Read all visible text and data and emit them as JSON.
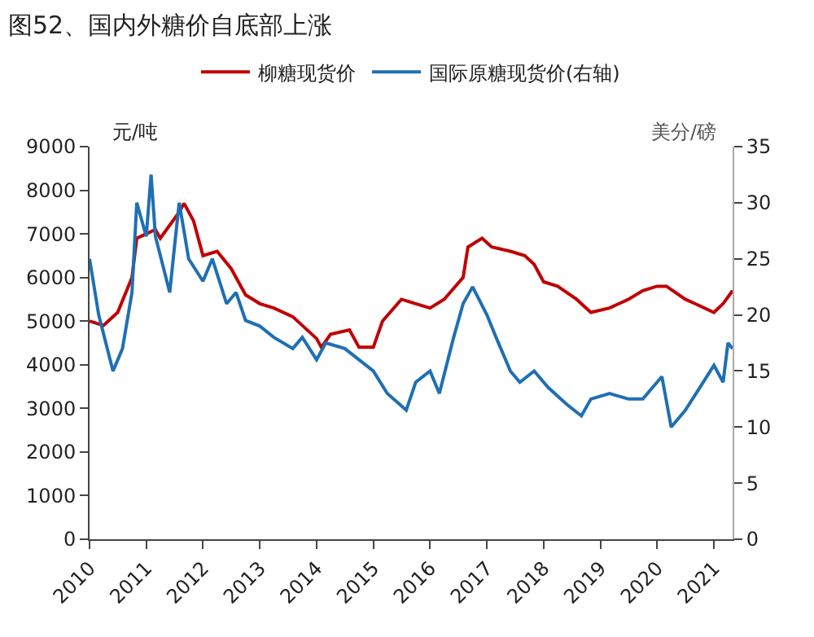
{
  "chart_data": {
    "type": "line",
    "title": "图52、国内外糖价自底部上涨",
    "ylabel": "元/吨",
    "y2label": "美分/磅",
    "legend": "top",
    "xlim": [
      "2010-01",
      "2021-05"
    ],
    "xticks": [
      "2010",
      "2011",
      "2012",
      "2013",
      "2014",
      "2015",
      "2016",
      "2017",
      "2018",
      "2019",
      "2020",
      "2021"
    ],
    "ylim": [
      0,
      9000
    ],
    "yticks": [
      0,
      1000,
      2000,
      3000,
      4000,
      5000,
      6000,
      7000,
      8000,
      9000
    ],
    "y2lim": [
      0,
      35
    ],
    "y2ticks": [
      0,
      5,
      10,
      15,
      20,
      25,
      30,
      35
    ],
    "series": [
      {
        "name": "柳糖现货价",
        "color": "#c00000",
        "x": [
          "2010-01",
          "2010-04",
          "2010-07",
          "2010-10",
          "2010-11",
          "2011-01",
          "2011-03",
          "2011-04",
          "2011-08",
          "2011-09",
          "2011-11",
          "2012-01",
          "2012-04",
          "2012-07",
          "2012-10",
          "2013-01",
          "2013-04",
          "2013-08",
          "2014-01",
          "2014-02",
          "2014-04",
          "2014-08",
          "2014-10",
          "2015-01",
          "2015-03",
          "2015-07",
          "2015-10",
          "2016-01",
          "2016-04",
          "2016-08",
          "2016-09",
          "2016-12",
          "2017-02",
          "2017-06",
          "2017-09",
          "2017-11",
          "2018-01",
          "2018-04",
          "2018-08",
          "2018-11",
          "2019-03",
          "2019-07",
          "2019-10",
          "2020-01",
          "2020-03",
          "2020-07",
          "2020-09",
          "2021-01",
          "2021-03",
          "2021-05"
        ],
        "values": [
          5000,
          4900,
          5200,
          6000,
          6900,
          7000,
          7100,
          6900,
          7500,
          7700,
          7300,
          6500,
          6600,
          6200,
          5600,
          5400,
          5300,
          5100,
          4600,
          4400,
          4700,
          4800,
          4400,
          4400,
          5000,
          5500,
          5400,
          5300,
          5500,
          6000,
          6700,
          6900,
          6700,
          6600,
          6500,
          6300,
          5900,
          5800,
          5500,
          5200,
          5300,
          5500,
          5700,
          5800,
          5800,
          5500,
          5400,
          5200,
          5400,
          5700
        ]
      },
      {
        "name": "国际原糖现货价(右轴)",
        "color": "#1f6fb4",
        "axis": "y2",
        "x": [
          "2010-01",
          "2010-03",
          "2010-06",
          "2010-08",
          "2010-10",
          "2010-11",
          "2011-01",
          "2011-02",
          "2011-03",
          "2011-06",
          "2011-07",
          "2011-08",
          "2011-10",
          "2012-01",
          "2012-03",
          "2012-06",
          "2012-08",
          "2012-10",
          "2013-01",
          "2013-04",
          "2013-08",
          "2013-10",
          "2014-01",
          "2014-03",
          "2014-07",
          "2014-10",
          "2015-01",
          "2015-04",
          "2015-08",
          "2015-10",
          "2016-01",
          "2016-03",
          "2016-06",
          "2016-08",
          "2016-10",
          "2017-01",
          "2017-03",
          "2017-06",
          "2017-08",
          "2017-11",
          "2018-02",
          "2018-06",
          "2018-09",
          "2018-11",
          "2019-03",
          "2019-07",
          "2019-10",
          "2020-02",
          "2020-04",
          "2020-07",
          "2020-10",
          "2021-01",
          "2021-03",
          "2021-04",
          "2021-05"
        ],
        "values": [
          25,
          20,
          15,
          17,
          22,
          30,
          27,
          32.5,
          27,
          22,
          26,
          30,
          25,
          23,
          25,
          21,
          22,
          19.5,
          19,
          18,
          17,
          18,
          16,
          17.5,
          17,
          16,
          15,
          13,
          11.5,
          14,
          15,
          13,
          18,
          21,
          22.5,
          20,
          18,
          15,
          14,
          15,
          13.5,
          12,
          11,
          12.5,
          13,
          12.5,
          12.5,
          14.5,
          10,
          11.5,
          13.5,
          15.5,
          14,
          17.5,
          17
        ]
      }
    ]
  }
}
